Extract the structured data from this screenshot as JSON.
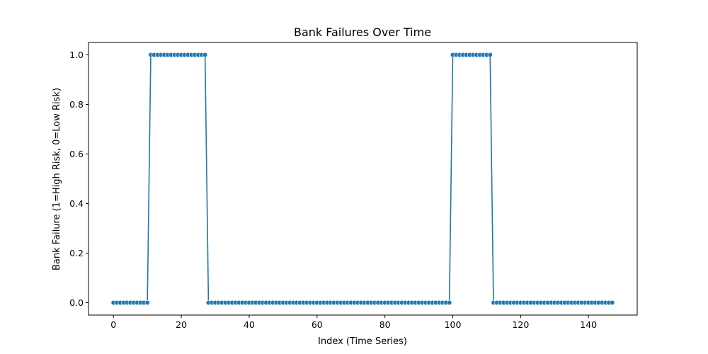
{
  "chart_data": {
    "type": "line",
    "title": "Bank Failures Over Time",
    "xlabel": "Index (Time Series)",
    "ylabel": "Bank Failure (1=High Risk, 0=Low Risk)",
    "xlim": [
      -7.35,
      154.35
    ],
    "ylim": [
      -0.05,
      1.05
    ],
    "xticks": [
      0,
      20,
      40,
      60,
      80,
      100,
      120,
      140
    ],
    "xtick_labels": [
      "0",
      "20",
      "40",
      "60",
      "80",
      "100",
      "120",
      "140"
    ],
    "yticks": [
      0.0,
      0.2,
      0.4,
      0.6,
      0.8,
      1.0
    ],
    "ytick_labels": [
      "0.0",
      "0.2",
      "0.4",
      "0.6",
      "0.8",
      "1.0"
    ],
    "grid": false,
    "color": "#1f77b4",
    "series": [
      {
        "x_start": 0,
        "x_step": 1,
        "values": [
          0,
          0,
          0,
          0,
          0,
          0,
          0,
          0,
          0,
          0,
          0,
          1,
          1,
          1,
          1,
          1,
          1,
          1,
          1,
          1,
          1,
          1,
          1,
          1,
          1,
          1,
          1,
          1,
          0,
          0,
          0,
          0,
          0,
          0,
          0,
          0,
          0,
          0,
          0,
          0,
          0,
          0,
          0,
          0,
          0,
          0,
          0,
          0,
          0,
          0,
          0,
          0,
          0,
          0,
          0,
          0,
          0,
          0,
          0,
          0,
          0,
          0,
          0,
          0,
          0,
          0,
          0,
          0,
          0,
          0,
          0,
          0,
          0,
          0,
          0,
          0,
          0,
          0,
          0,
          0,
          0,
          0,
          0,
          0,
          0,
          0,
          0,
          0,
          0,
          0,
          0,
          0,
          0,
          0,
          0,
          0,
          0,
          0,
          0,
          0,
          1,
          1,
          1,
          1,
          1,
          1,
          1,
          1,
          1,
          1,
          1,
          1,
          0,
          0,
          0,
          0,
          0,
          0,
          0,
          0,
          0,
          0,
          0,
          0,
          0,
          0,
          0,
          0,
          0,
          0,
          0,
          0,
          0,
          0,
          0,
          0,
          0,
          0,
          0,
          0,
          0,
          0,
          0,
          0,
          0,
          0,
          0,
          0
        ]
      }
    ]
  }
}
